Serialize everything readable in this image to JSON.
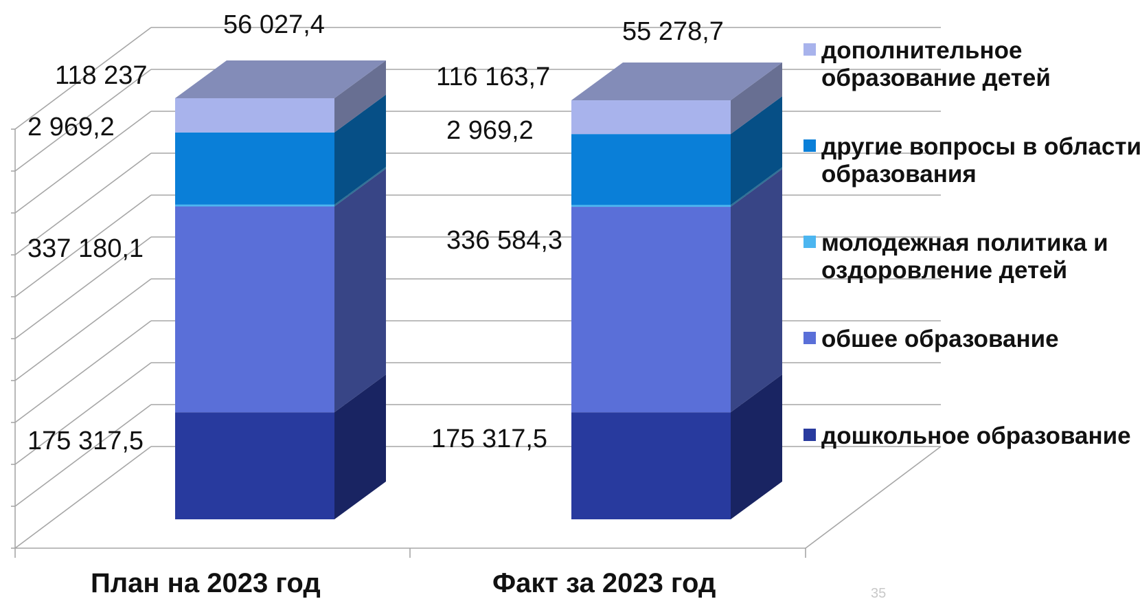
{
  "chart_data": {
    "type": "bar",
    "stacked": true,
    "three_d": true,
    "categories": [
      "План на 2023 год",
      "Факт за 2023 год"
    ],
    "series": [
      {
        "name": "дошкольное образование",
        "values": [
          175317.5,
          175317.5
        ],
        "labels": [
          "175 317,5",
          "175 317,5"
        ],
        "color": "#283a9e"
      },
      {
        "name": "обшее образование",
        "values": [
          337180.1,
          336584.3
        ],
        "labels": [
          "337 180,1",
          "336 584,3"
        ],
        "color": "#5a6fd8"
      },
      {
        "name": "молодежная политика и оздоровление детей",
        "values": [
          2969.2,
          2969.2
        ],
        "labels": [
          "2 969,2",
          "2 969,2"
        ],
        "color": "#4cb6f0"
      },
      {
        "name": "другие вопросы в области образования",
        "values": [
          118237,
          116163.7
        ],
        "labels": [
          "118 237",
          "116 163,7"
        ],
        "color": "#0a7fd8"
      },
      {
        "name": "дополнительное образование детей",
        "values": [
          56027.4,
          55278.7
        ],
        "labels": [
          "56 027,4",
          "55 278,7"
        ],
        "color": "#a8b3ec"
      }
    ],
    "legend_position": "right",
    "grid": true,
    "page_number": "35"
  }
}
